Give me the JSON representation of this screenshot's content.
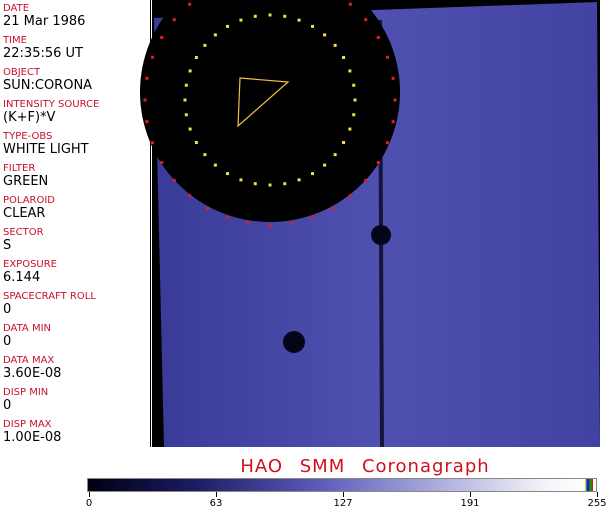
{
  "fields": [
    {
      "label": "DATE",
      "value": "21 Mar 1986"
    },
    {
      "label": "TIME",
      "value": "22:35:56 UT"
    },
    {
      "label": "OBJECT",
      "value": "SUN:CORONA"
    },
    {
      "label": "INTENSITY SOURCE",
      "value": "(K+F)*V"
    },
    {
      "label": "TYPE-OBS",
      "value": "WHITE LIGHT"
    },
    {
      "label": "FILTER",
      "value": "GREEN"
    },
    {
      "label": "POLAROID",
      "value": "CLEAR"
    },
    {
      "label": "SECTOR",
      "value": "S"
    },
    {
      "label": "EXPOSURE",
      "value": "6.144"
    },
    {
      "label": "SPACECRAFT ROLL",
      "value": "0"
    },
    {
      "label": "DATA MIN",
      "value": "0"
    },
    {
      "label": "DATA MAX",
      "value": "3.60E-08"
    },
    {
      "label": "DISP MIN",
      "value": "0"
    },
    {
      "label": "DISP MAX",
      "value": "1.00E-08"
    }
  ],
  "title": "HAO  SMM Coronagraph",
  "colorbar": {
    "ticks": [
      "0",
      "63",
      "127",
      "191",
      "255"
    ]
  },
  "colors": {
    "label": "#c8102e",
    "corona": "#4a4aa8",
    "title": "#d01020"
  }
}
